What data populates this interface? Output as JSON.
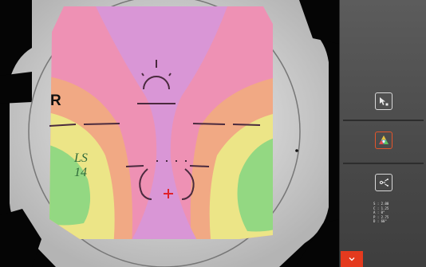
{
  "viewport": {
    "eye_label": "R",
    "lens_code_line1": "LS",
    "lens_code_line2": "14",
    "colors": {
      "central_corridor": "#d996d6",
      "zone_pink": "#ee91b4",
      "zone_orange": "#f1a984",
      "zone_yellow": "#ece587",
      "zone_green": "#93d882",
      "marking_ink": "#4a2a3e",
      "fitting_cross": "#e0222a"
    }
  },
  "side_panel": {
    "tools": [
      {
        "name": "select-tool",
        "icon": "cursor-icon",
        "active": false
      },
      {
        "name": "color-map-tool",
        "icon": "color-map-icon",
        "active": true
      },
      {
        "name": "compare-tool",
        "icon": "compare-icon",
        "active": false
      }
    ],
    "readout": [
      "S : 2.00",
      "C : 1.25",
      "A : 0°",
      "P : 2.75",
      "D : 60°"
    ],
    "accent_color": "#e43a1e"
  },
  "action_button": {
    "icon": "chevron-down-icon"
  }
}
